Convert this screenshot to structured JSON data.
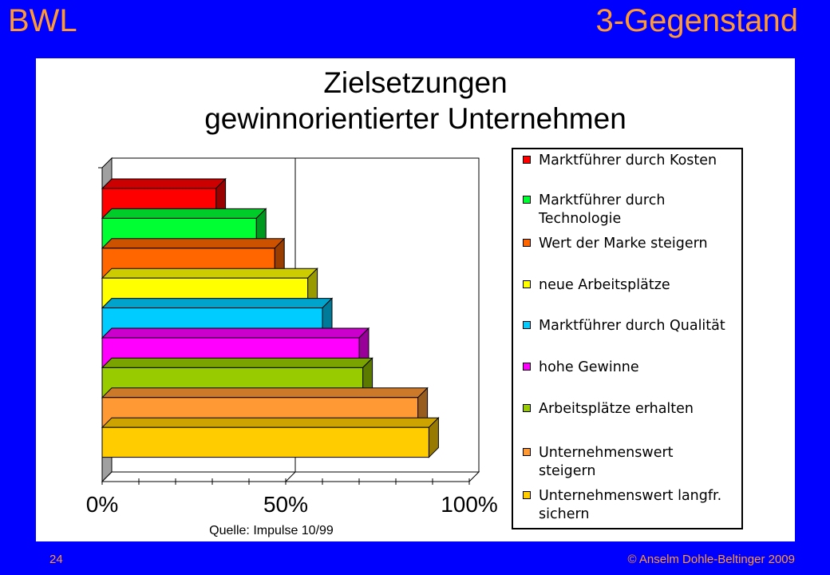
{
  "header": {
    "left_title": "BWL",
    "right_title": "3-Gegenstand"
  },
  "chart_data": {
    "type": "bar",
    "orientation": "horizontal",
    "style": "3d-stacked-layers",
    "title": [
      "Zielsetzungen",
      "gewinnorientierter Unternehmen"
    ],
    "xlim": [
      0,
      100
    ],
    "x_ticks": [
      "0%",
      "50%",
      "100%"
    ],
    "grid": "vertical line at 50%",
    "legend_position": "right",
    "categories": [
      "Marktführer durch Kosten",
      "Marktführer durch Technologie",
      "Wert der Marke steigern",
      "neue Arbeitsplätze",
      "Marktführer durch Qualität",
      "hohe Gewinne",
      "Arbeitsplätze erhalten",
      "Unternehmenswert steigern",
      "Unternehmenswert langfr. sichern"
    ],
    "legend_labels": [
      [
        "Marktführer durch Kosten"
      ],
      [
        "Marktführer durch",
        "Technologie"
      ],
      [
        "Wert der Marke steigern"
      ],
      [
        "neue Arbeitsplätze"
      ],
      [
        "Marktführer durch Qualität"
      ],
      [
        "hohe Gewinne"
      ],
      [
        "Arbeitsplätze erhalten"
      ],
      [
        "Unternehmenswert",
        "steigern"
      ],
      [
        "Unternehmenswert langfr.",
        "sichern"
      ]
    ],
    "values": [
      31,
      42,
      47,
      56,
      60,
      70,
      71,
      86,
      89
    ],
    "colors": [
      "#ff0000",
      "#00ff33",
      "#ff6600",
      "#ffff00",
      "#00ccff",
      "#ff00ff",
      "#99cc00",
      "#ff9933",
      "#ffcc00"
    ]
  },
  "source": "Quelle: Impulse 10/99",
  "footer": {
    "page": "24",
    "copyright": "© Anselm Dohle-Beltinger 2009"
  }
}
